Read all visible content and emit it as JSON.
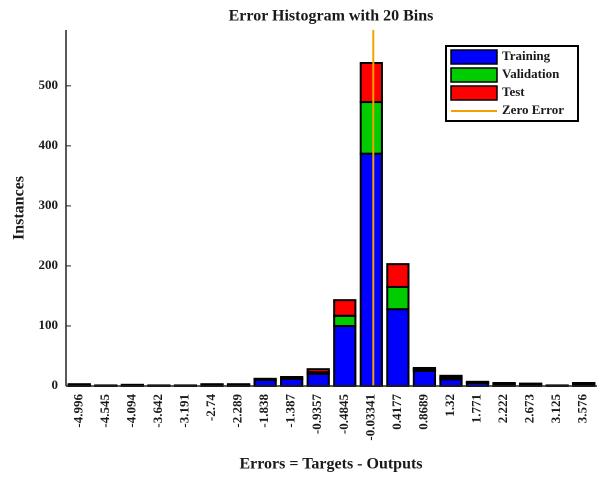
{
  "chart_data": {
    "type": "bar",
    "stacked": true,
    "title": "Error Histogram with 20 Bins",
    "x_label": "Errors = Targets - Outputs",
    "y_label": "Instances",
    "categories": [
      "-4.996",
      "-4.545",
      "-4.094",
      "-3.642",
      "-3.191",
      "-2.74",
      "-2.289",
      "-1.838",
      "-1.387",
      "-0.9357",
      "-0.4845",
      "-0.03341",
      "0.4177",
      "0.8689",
      "1.32",
      "1.771",
      "2.222",
      "2.673",
      "3.125",
      "3.576"
    ],
    "series": [
      {
        "name": "Training",
        "color": "#0000ff",
        "values": [
          2,
          1,
          2,
          1,
          1,
          2,
          2,
          10,
          12,
          20,
          100,
          387,
          128,
          25,
          11,
          5,
          3,
          3,
          1,
          3
        ]
      },
      {
        "name": "Validation",
        "color": "#00cc00",
        "values": [
          0,
          0,
          0,
          0,
          0,
          0,
          0,
          0,
          0,
          3,
          17,
          86,
          37,
          3,
          3,
          1,
          1,
          0,
          0,
          1
        ]
      },
      {
        "name": "Test",
        "color": "#ff0000",
        "values": [
          1,
          0,
          0,
          0,
          0,
          1,
          1,
          2,
          3,
          5,
          26,
          65,
          38,
          2,
          3,
          1,
          1,
          1,
          0,
          1
        ]
      }
    ],
    "zero_error_line": {
      "name": "Zero Error",
      "color": "#f5a000",
      "x": 0
    },
    "ylim": [
      0,
      593
    ],
    "yticks": [
      0,
      100,
      200,
      300,
      400,
      500
    ],
    "legend": "top-right"
  }
}
